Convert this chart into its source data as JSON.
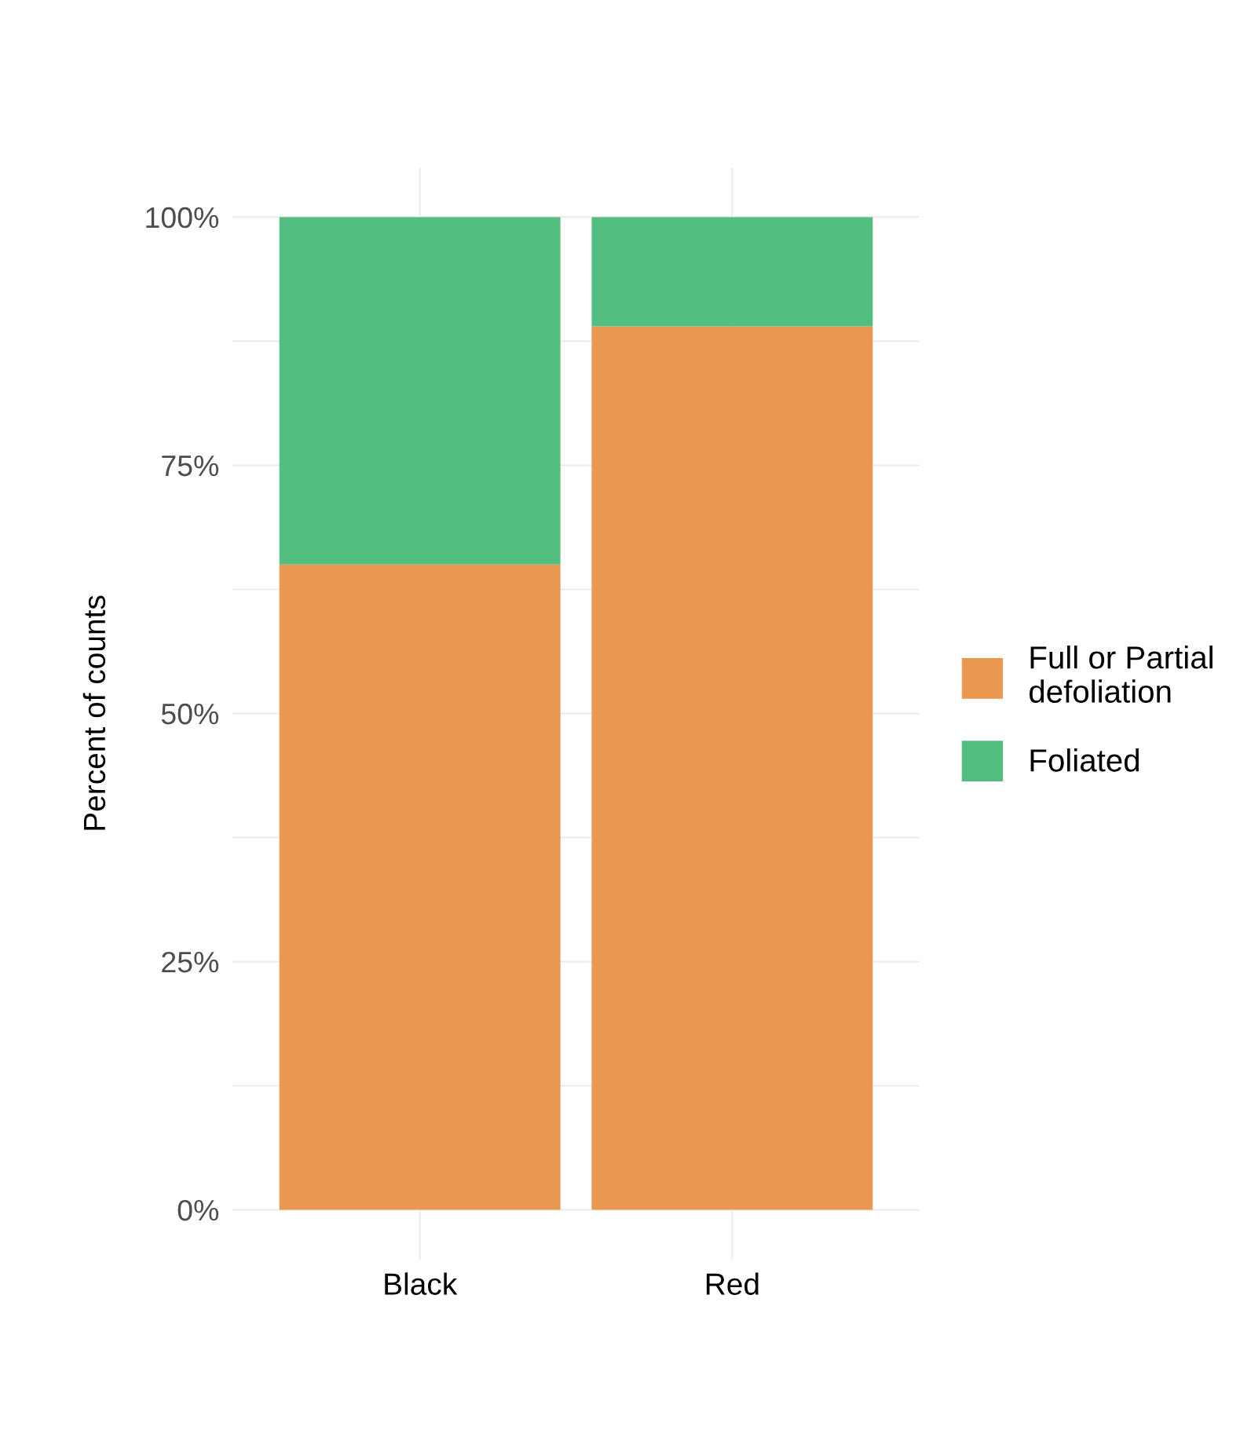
{
  "chart_data": {
    "type": "bar",
    "stacked": true,
    "ylabel": "Percent of counts",
    "categories": [
      "Black",
      "Red"
    ],
    "series": [
      {
        "name": "Full or Partial\ndefoliation",
        "color": "#ea974f",
        "values": [
          65,
          89
        ]
      },
      {
        "name": "Foliated",
        "color": "#52bf80",
        "values": [
          35,
          11
        ]
      }
    ],
    "ylim": [
      -5,
      105
    ],
    "yticks": [
      {
        "value": 0,
        "label": "0%"
      },
      {
        "value": 12.5,
        "label": null
      },
      {
        "value": 25,
        "label": "25%"
      },
      {
        "value": 37.5,
        "label": null
      },
      {
        "value": 50,
        "label": "50%"
      },
      {
        "value": 62.5,
        "label": null
      },
      {
        "value": 75,
        "label": "75%"
      },
      {
        "value": 87.5,
        "label": null
      },
      {
        "value": 100,
        "label": "100%"
      }
    ],
    "grid": true,
    "legend": "right"
  }
}
